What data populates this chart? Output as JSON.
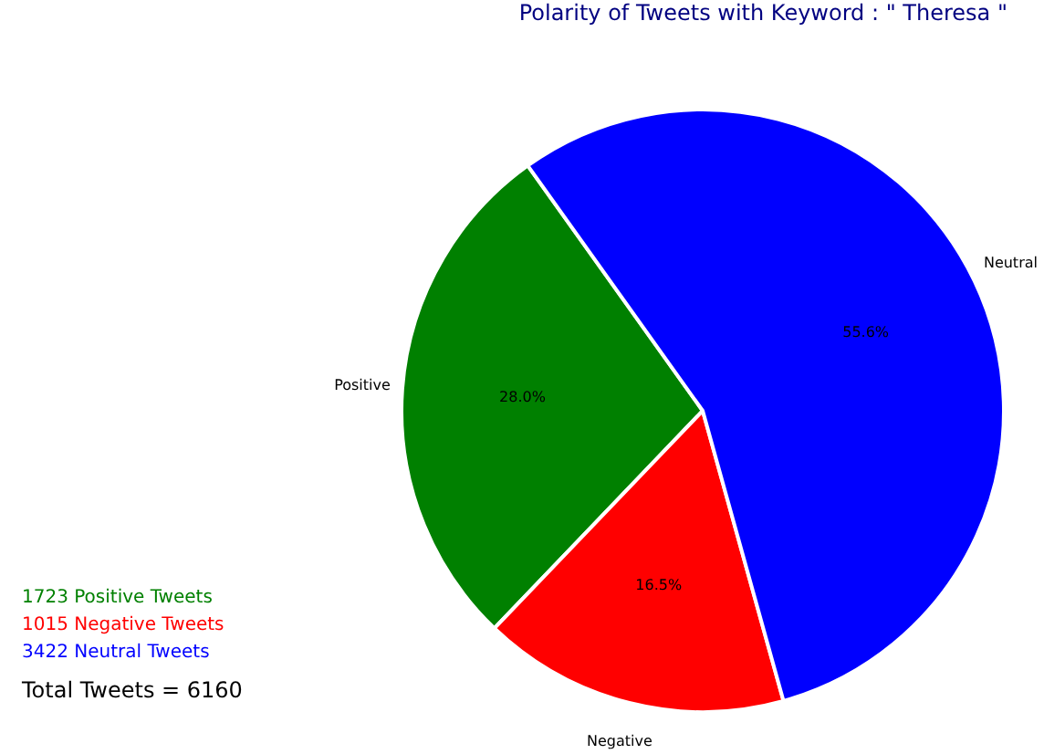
{
  "chart_data": {
    "type": "pie",
    "title": "Polarity of Tweets with Keyword : \" Theresa \"",
    "categories": [
      "Positive",
      "Negative",
      "Neutral"
    ],
    "values": [
      28.0,
      16.5,
      55.6
    ],
    "colors": [
      "#008000",
      "#ff0000",
      "#0000ff"
    ],
    "value_labels": [
      "28.0%",
      "16.5%",
      "55.6%"
    ],
    "legend": false,
    "annotations": [
      "1723 Positive Tweets",
      "1015 Negative Tweets",
      "3422 Neutral Tweets",
      "Total Tweets = 6160"
    ]
  }
}
